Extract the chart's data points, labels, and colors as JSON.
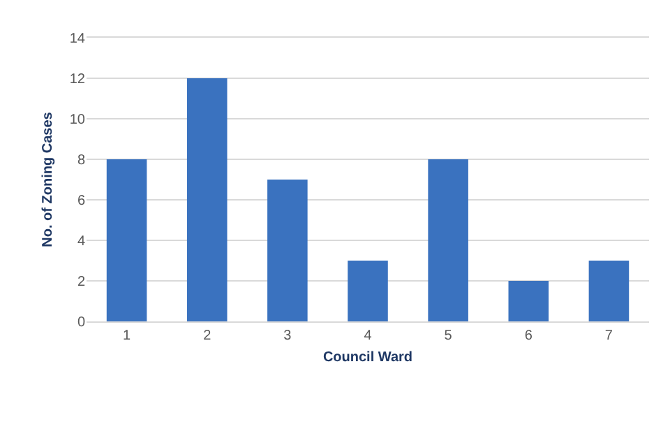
{
  "chart_data": {
    "type": "bar",
    "xlabel": "Council Ward",
    "ylabel": "No. of Zoning Cases",
    "categories": [
      "1",
      "2",
      "3",
      "4",
      "5",
      "6",
      "7"
    ],
    "values": [
      8,
      12,
      7,
      3,
      8,
      2,
      3
    ],
    "color": "#3a72bf",
    "ylim": [
      0,
      14
    ],
    "yticks": [
      0,
      2,
      4,
      6,
      8,
      10,
      12,
      14
    ],
    "grid": "y"
  }
}
